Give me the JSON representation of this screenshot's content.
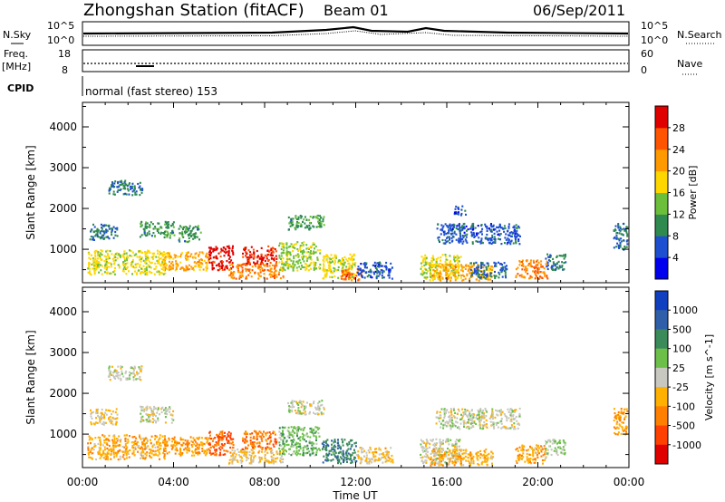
{
  "header": {
    "station": "Zhongshan Station (fitACF)",
    "beam": "Beam 01",
    "date": "06/Sep/2011"
  },
  "summary": {
    "left_labels": [
      "N.Sky",
      "Freq.",
      "[MHz]",
      "CPID"
    ],
    "right_labels": [
      "N.Search",
      "Nave"
    ],
    "noise_ticks_left": [
      "10^5",
      "10^0"
    ],
    "noise_ticks_right": [
      "10^5",
      "10^0"
    ],
    "freq_ticks": [
      "18",
      "8"
    ],
    "nave_ticks": [
      "60",
      "0"
    ],
    "cpid_text": "normal (fast stereo) 153"
  },
  "colors": {
    "power_scale": [
      "#0000ee",
      "#1e4fd0",
      "#2f8a4f",
      "#6bbf3a",
      "#ffd700",
      "#ff9900",
      "#ff5500",
      "#e00000"
    ],
    "velocity_scale": [
      "#1040c0",
      "#2f5fa8",
      "#3a8a5a",
      "#6cc04a",
      "#c8c8c0",
      "#ffb000",
      "#ff7f00",
      "#ff4000",
      "#e00000"
    ]
  },
  "chart_data": [
    {
      "type": "heatmap",
      "title": "",
      "xlabel": "Time UT",
      "ylabel": "Slant Range [km]",
      "x_ticks": [
        "00:00",
        "04:00",
        "08:00",
        "12:00",
        "16:00",
        "20:00",
        "00:00"
      ],
      "y_ticks": [
        "1000",
        "2000",
        "3000",
        "4000"
      ],
      "ylim": [
        180,
        4600
      ],
      "colorbar_label": "Power [dB]",
      "colorbar_ticks": [
        "4",
        "8",
        "12",
        "16",
        "20",
        "24",
        "28"
      ],
      "zlim": [
        0,
        30
      ],
      "patches": [
        {
          "t": [
            0.2,
            3.6
          ],
          "r": [
            400,
            1000
          ],
          "value": 16
        },
        {
          "t": [
            0.3,
            1.5
          ],
          "r": [
            1250,
            1650
          ],
          "value": 8
        },
        {
          "t": [
            1.1,
            2.6
          ],
          "r": [
            2350,
            2700
          ],
          "value": 8
        },
        {
          "t": [
            2.5,
            4.0
          ],
          "r": [
            1300,
            1700
          ],
          "value": 10
        },
        {
          "t": [
            3.5,
            5.5
          ],
          "r": [
            500,
            950
          ],
          "value": 20
        },
        {
          "t": [
            4.2,
            5.2
          ],
          "r": [
            1200,
            1600
          ],
          "value": 10
        },
        {
          "t": [
            5.5,
            6.6
          ],
          "r": [
            500,
            1100
          ],
          "value": 28
        },
        {
          "t": [
            6.4,
            8.8
          ],
          "r": [
            300,
            650
          ],
          "value": 22
        },
        {
          "t": [
            7.0,
            8.5
          ],
          "r": [
            650,
            1100
          ],
          "value": 27
        },
        {
          "t": [
            8.6,
            10.4
          ],
          "r": [
            500,
            1200
          ],
          "value": 14
        },
        {
          "t": [
            9.0,
            10.6
          ],
          "r": [
            1500,
            1850
          ],
          "value": 10
        },
        {
          "t": [
            10.5,
            12.0
          ],
          "r": [
            300,
            900
          ],
          "value": 16
        },
        {
          "t": [
            11.3,
            12.3
          ],
          "r": [
            250,
            550
          ],
          "value": 24
        },
        {
          "t": [
            12.0,
            13.6
          ],
          "r": [
            300,
            700
          ],
          "value": 6
        },
        {
          "t": [
            14.8,
            16.6
          ],
          "r": [
            300,
            900
          ],
          "value": 16
        },
        {
          "t": [
            15.2,
            18.0
          ],
          "r": [
            250,
            650
          ],
          "value": 20
        },
        {
          "t": [
            15.5,
            19.2
          ],
          "r": [
            1150,
            1650
          ],
          "value": 6
        },
        {
          "t": [
            17.0,
            18.6
          ],
          "r": [
            300,
            700
          ],
          "value": 7
        },
        {
          "t": [
            19.0,
            20.4
          ],
          "r": [
            300,
            750
          ],
          "value": 22
        },
        {
          "t": [
            20.3,
            21.2
          ],
          "r": [
            500,
            900
          ],
          "value": 8
        },
        {
          "t": [
            23.3,
            23.9
          ],
          "r": [
            1000,
            1650
          ],
          "value": 8
        },
        {
          "t": [
            16.3,
            16.8
          ],
          "r": [
            1850,
            2100
          ],
          "value": 6
        }
      ]
    },
    {
      "type": "heatmap",
      "title": "",
      "xlabel": "Time UT",
      "ylabel": "Slant Range [km]",
      "x_ticks": [
        "00:00",
        "04:00",
        "08:00",
        "12:00",
        "16:00",
        "20:00",
        "00:00"
      ],
      "y_ticks": [
        "1000",
        "2000",
        "3000",
        "4000"
      ],
      "ylim": [
        180,
        4600
      ],
      "colorbar_label": "Velocity [m s^-1]",
      "colorbar_ticks": [
        "1000",
        "500",
        "100",
        "25",
        "-25",
        "-100",
        "-500",
        "-1000"
      ],
      "zlim": [
        -1200,
        1200
      ],
      "patches": [
        {
          "t": [
            0.2,
            3.6
          ],
          "r": [
            400,
            1000
          ],
          "value": -300
        },
        {
          "t": [
            0.3,
            1.5
          ],
          "r": [
            1250,
            1650
          ],
          "value": -150
        },
        {
          "t": [
            1.1,
            2.6
          ],
          "r": [
            2350,
            2700
          ],
          "value": 0
        },
        {
          "t": [
            2.5,
            4.0
          ],
          "r": [
            1300,
            1700
          ],
          "value": 0
        },
        {
          "t": [
            3.5,
            5.5
          ],
          "r": [
            500,
            950
          ],
          "value": -400
        },
        {
          "t": [
            5.5,
            6.6
          ],
          "r": [
            500,
            1100
          ],
          "value": -700
        },
        {
          "t": [
            6.4,
            8.8
          ],
          "r": [
            300,
            650
          ],
          "value": -200
        },
        {
          "t": [
            7.0,
            8.5
          ],
          "r": [
            650,
            1100
          ],
          "value": -600
        },
        {
          "t": [
            8.6,
            10.4
          ],
          "r": [
            500,
            1200
          ],
          "value": 300
        },
        {
          "t": [
            9.0,
            10.6
          ],
          "r": [
            1500,
            1850
          ],
          "value": 0
        },
        {
          "t": [
            10.5,
            12.0
          ],
          "r": [
            300,
            900
          ],
          "value": 600
        },
        {
          "t": [
            12.0,
            13.6
          ],
          "r": [
            300,
            700
          ],
          "value": -200
        },
        {
          "t": [
            14.8,
            16.6
          ],
          "r": [
            300,
            900
          ],
          "value": 0
        },
        {
          "t": [
            15.2,
            18.0
          ],
          "r": [
            250,
            650
          ],
          "value": -300
        },
        {
          "t": [
            15.5,
            19.2
          ],
          "r": [
            1150,
            1650
          ],
          "value": 0
        },
        {
          "t": [
            19.0,
            20.4
          ],
          "r": [
            300,
            750
          ],
          "value": -300
        },
        {
          "t": [
            20.3,
            21.2
          ],
          "r": [
            500,
            900
          ],
          "value": 150
        },
        {
          "t": [
            23.3,
            23.9
          ],
          "r": [
            1000,
            1650
          ],
          "value": -400
        }
      ]
    }
  ]
}
